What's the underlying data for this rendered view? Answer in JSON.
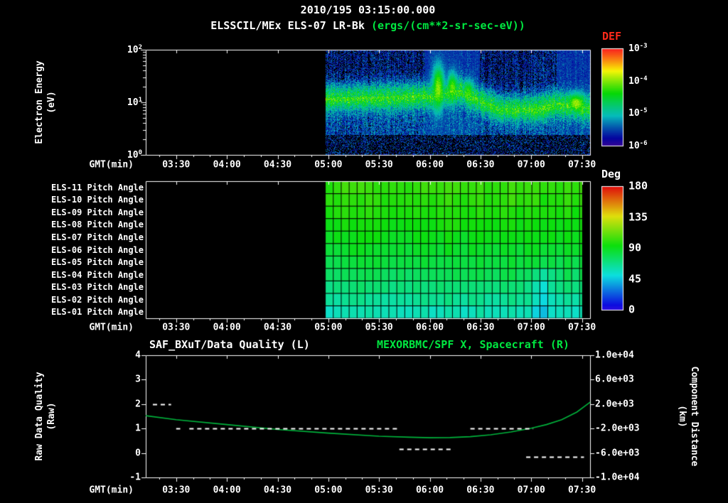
{
  "header": {
    "line1": "2010/195 03:15:00.000",
    "line2_white": "ELSSCIL/MEx ELS-07 LR-Bk",
    "line2_green": " (ergs/(cm**2-sr-sec-eV))"
  },
  "axes": {
    "gmt_label": "GMT(min)"
  },
  "labels": {
    "pow_base": "10",
    "def": "DEF",
    "deg": "Deg",
    "energy_ylabel_lines": [
      "Electron Energy",
      "(eV)"
    ],
    "raw_ylabel_lines": [
      "Raw Data Quality",
      "(Raw)"
    ],
    "distance_ylabel_lines": [
      "Component Distance",
      "(km)"
    ]
  },
  "colors": {
    "background": "#000000",
    "foreground": "#ffffff",
    "green_accent": "#00e840",
    "red_accent": "#ff2a1a",
    "curve_green": "#00b43c"
  },
  "chart_data": [
    {
      "type": "heatmap",
      "name": "electron-energy-spectrogram",
      "title": "ELSSCIL/MEx ELS-07 LR-Bk",
      "units": "ergs/(cm**2-sr-sec-eV)",
      "timestamp": "2010/195 03:15:00.000",
      "xlabel": "GMT(min)",
      "ylabel": "Electron Energy (eV)",
      "x_range_hours": [
        3.2,
        7.58
      ],
      "x_ticks_hours": [
        3.5,
        4,
        4.5,
        5,
        5.5,
        6,
        6.5,
        7,
        7.5
      ],
      "x_tick_labels": [
        "03:30",
        "04:00",
        "04:30",
        "05:00",
        "05:30",
        "06:00",
        "06:30",
        "07:00",
        "07:30"
      ],
      "y_scale": "log10",
      "y_range_ev": [
        1,
        100
      ],
      "y_tick_exponents": [
        "2",
        "1",
        "0"
      ],
      "colorbar": {
        "label": "DEF",
        "log10_range": [
          -6,
          -3
        ],
        "tick_exponents": [
          "-3",
          "-4",
          "-5",
          "-6"
        ]
      },
      "data_start_hour": 4.97,
      "background_log_def": -5.62,
      "band": {
        "sigma_log_e": 0.18,
        "peak_log_def": -4.5,
        "center_log_e_points": [
          [
            4.97,
            1.1
          ],
          [
            5.6,
            1.12
          ],
          [
            6.0,
            1.15
          ],
          [
            6.3,
            1.25
          ],
          [
            6.5,
            1.05
          ],
          [
            6.7,
            0.9
          ],
          [
            7.05,
            0.9
          ],
          [
            7.25,
            1.0
          ],
          [
            7.45,
            0.95
          ],
          [
            7.58,
            0.92
          ]
        ]
      },
      "events": [
        {
          "hour": 6.08,
          "sigma_hour": 0.045,
          "peak_log_def": -3.95,
          "top_log_e": 1.75
        },
        {
          "hour": 6.22,
          "sigma_hour": 0.04,
          "peak_log_def": -4.1,
          "top_log_e": 1.6
        },
        {
          "hour": 6.38,
          "sigma_hour": 0.04,
          "peak_log_def": -4.3,
          "top_log_e": 1.45
        },
        {
          "hour": 7.44,
          "sigma_hour": 0.07,
          "peak_log_def": -3.9,
          "top_log_e": 1.2
        }
      ]
    },
    {
      "type": "heatmap",
      "name": "pitch-angle-grid",
      "xlabel": "GMT(min)",
      "x_range_hours": [
        3.2,
        7.58
      ],
      "data_start_hour": 4.97,
      "data_end_hour": 7.505,
      "cell_minutes": 4.7,
      "colorbar": {
        "label": "Deg",
        "range_deg": [
          0,
          180
        ],
        "tick_labels": [
          "180",
          "135",
          "90",
          "45",
          "0"
        ]
      },
      "rows": [
        {
          "label": "ELS-11 Pitch Angle",
          "mean_deg": 102
        },
        {
          "label": "ELS-10 Pitch Angle",
          "mean_deg": 100
        },
        {
          "label": "ELS-09 Pitch Angle",
          "mean_deg": 97
        },
        {
          "label": "ELS-08 Pitch Angle",
          "mean_deg": 94
        },
        {
          "label": "ELS-07 Pitch Angle",
          "mean_deg": 91
        },
        {
          "label": "ELS-06 Pitch Angle",
          "mean_deg": 87
        },
        {
          "label": "ELS-05 Pitch Angle",
          "mean_deg": 83
        },
        {
          "label": "ELS-04 Pitch Angle",
          "mean_deg": 78
        },
        {
          "label": "ELS-03 Pitch Angle",
          "mean_deg": 72
        },
        {
          "label": "ELS-02 Pitch Angle",
          "mean_deg": 66
        },
        {
          "label": "ELS-01 Pitch Angle",
          "mean_deg": 59
        }
      ],
      "feature": {
        "hours": [
          6.98,
          7.25
        ],
        "rows_from_bottom": 4,
        "delta_deg": -17
      }
    },
    {
      "type": "line",
      "name": "quality-and-spacecraft-distance",
      "titles": {
        "left": "SAF_BXuT/Data Quality (L)",
        "right": "MEXORBMC/SPF X, Spacecraft (R)"
      },
      "xlabel": "GMT(min)",
      "x_range_hours": [
        3.2,
        7.58
      ],
      "y_left": {
        "label": "Raw Data Quality (Raw)",
        "range": [
          -1,
          4
        ],
        "tick_labels": [
          "4",
          "3",
          "2",
          "1",
          "0",
          "-1"
        ]
      },
      "y_right": {
        "label": "Component Distance (km)",
        "range": [
          -10000,
          10000
        ],
        "tick_labels": [
          "1.0e+04",
          "6.0e+03",
          "2.0e+03",
          "-2.0e+03",
          "-6.0e+03",
          "-1.0e+04"
        ]
      },
      "series": [
        {
          "name": "MEXORBMC/SPF X, Spacecraft",
          "axis": "right",
          "style": "solid",
          "color_key": "curve_green",
          "points_hour_km": [
            [
              3.2,
              100
            ],
            [
              3.5,
              -550
            ],
            [
              4.0,
              -1350
            ],
            [
              4.5,
              -2150
            ],
            [
              5.0,
              -2750
            ],
            [
              5.5,
              -3250
            ],
            [
              5.8,
              -3420
            ],
            [
              6.0,
              -3500
            ],
            [
              6.2,
              -3470
            ],
            [
              6.4,
              -3330
            ],
            [
              6.6,
              -3020
            ],
            [
              6.8,
              -2550
            ],
            [
              7.0,
              -1950
            ],
            [
              7.15,
              -1350
            ],
            [
              7.3,
              -550
            ],
            [
              7.45,
              700
            ],
            [
              7.58,
              2300
            ]
          ]
        },
        {
          "name": "SAF_BXuT/Data Quality",
          "axis": "left",
          "style": "dashed",
          "color_key": "foreground",
          "segments": [
            {
              "quality": 2,
              "start_hour": 3.27,
              "end_hour": 3.45
            },
            {
              "quality": 1,
              "start_hour": 3.5,
              "end_hour": 3.54
            },
            {
              "quality": 1,
              "start_hour": 3.63,
              "end_hour": 5.69
            },
            {
              "quality": 0.15,
              "start_hour": 5.7,
              "end_hour": 6.24
            },
            {
              "quality": 1,
              "start_hour": 6.4,
              "end_hour": 7.02
            },
            {
              "quality": -0.15,
              "start_hour": 6.95,
              "end_hour": 7.52
            }
          ]
        }
      ]
    }
  ]
}
